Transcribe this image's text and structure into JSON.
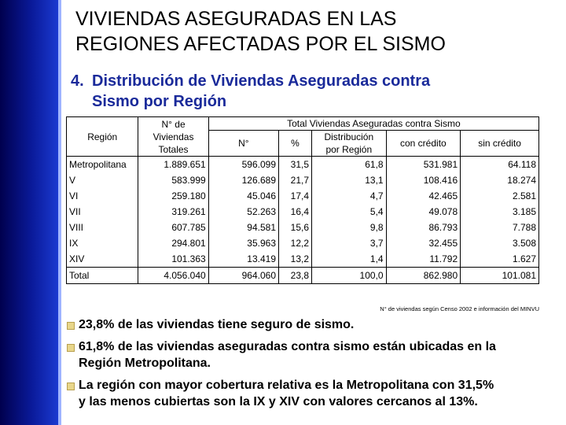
{
  "title_line1": "VIVIENDAS ASEGURADAS EN LAS",
  "title_line2": "REGIONES AFECTADAS POR EL SISMO",
  "subtitle_num": "4.",
  "subtitle_line1": "Distribución de Viviendas Aseguradas contra",
  "subtitle_line2": "Sismo por Región",
  "table": {
    "headers": {
      "region": "Región",
      "viviendas": [
        "N° de",
        "Viviendas",
        "Totales"
      ],
      "group": "Total  Viviendas Aseguradas contra Sismo",
      "num": "N°",
      "pct": "%",
      "distribucion": [
        "Distribución",
        "por Región"
      ],
      "con_credito": "con crédito",
      "sin_credito": "sin crédito"
    },
    "rows": [
      [
        "Metropolitana",
        "1.889.651",
        "596.099",
        "31,5",
        "61,8",
        "531.981",
        "64.118"
      ],
      [
        "V",
        "583.999",
        "126.689",
        "21,7",
        "13,1",
        "108.416",
        "18.274"
      ],
      [
        "VI",
        "259.180",
        "45.046",
        "17,4",
        "4,7",
        "42.465",
        "2.581"
      ],
      [
        "VII",
        "319.261",
        "52.263",
        "16,4",
        "5,4",
        "49.078",
        "3.185"
      ],
      [
        "VIII",
        "607.785",
        "94.581",
        "15,6",
        "9,8",
        "86.793",
        "7.788"
      ],
      [
        "IX",
        "294.801",
        "35.963",
        "12,2",
        "3,7",
        "32.455",
        "3.508"
      ],
      [
        "XIV",
        "101.363",
        "13.419",
        "13,2",
        "1,4",
        "11.792",
        "1.627"
      ]
    ],
    "total": [
      "Total",
      "4.056.040",
      "964.060",
      "23,8",
      "100,0",
      "862.980",
      "101.081"
    ]
  },
  "source": "N° de viviendas según Censo 2002 e información del MINVU",
  "bullets": [
    [
      "23,8% de las viviendas tiene seguro de sismo."
    ],
    [
      "61,8% de las viviendas aseguradas contra sismo están ubicadas en la",
      "Región Metropolitana."
    ],
    [
      "La región con mayor cobertura relativa es la Metropolitana con 31,5%",
      "y las menos cubiertas son la IX y XIV con valores cercanos al 13%."
    ]
  ],
  "colors": {
    "sidebar": "#0a1a9a",
    "subtitle": "#1a2a9a",
    "bullet": "#e8d68a"
  }
}
